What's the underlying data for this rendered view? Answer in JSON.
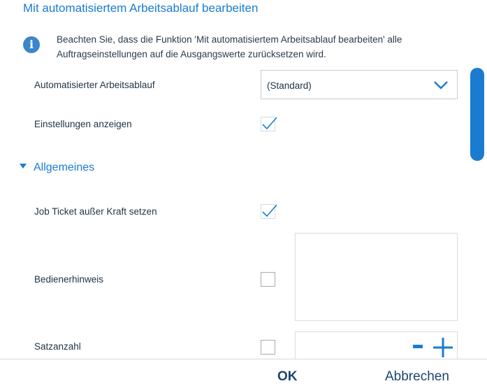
{
  "title": "Mit automatisiertem Arbeitsablauf bearbeiten",
  "info": {
    "line1": "Beachten Sie, dass die Funktion 'Mit automatisiertem Arbeitsablauf bearbeiten' alle",
    "line2": "Auftragseinstellungen auf die Ausgangswerte zurücksetzen wird.",
    "icon": "info-icon"
  },
  "workflow": {
    "label": "Automatisierter Arbeitsablauf",
    "value": "(Standard)"
  },
  "show_settings": {
    "label": "Einstellungen anzeigen",
    "checked": true
  },
  "section": {
    "label": "Allgemeines",
    "expanded": true
  },
  "job_ticket": {
    "label": "Job Ticket außer Kraft setzen",
    "checked": true
  },
  "operator_note": {
    "label": "Bedienerhinweis",
    "checked": false,
    "value": ""
  },
  "copies": {
    "label": "Satzanzahl",
    "checked": false,
    "value": "",
    "minus": "-",
    "plus": "+"
  },
  "footer": {
    "ok": "OK",
    "cancel": "Abbrechen"
  },
  "colors": {
    "accent": "#1a7bd1",
    "text": "#1f3344"
  }
}
